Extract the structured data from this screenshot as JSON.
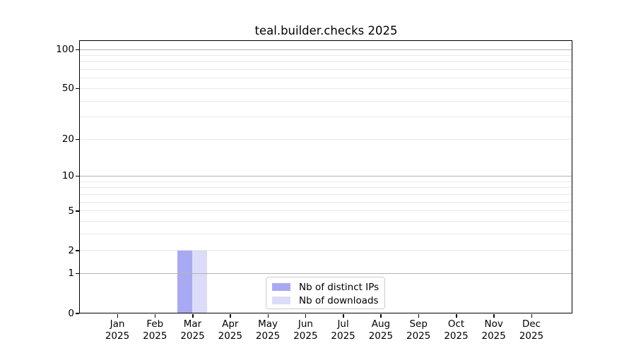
{
  "title": "teal.builder.checks 2025",
  "chart_data": {
    "type": "bar",
    "title": "teal.builder.checks 2025",
    "categories": [
      "Jan",
      "Feb",
      "Mar",
      "Apr",
      "May",
      "Jun",
      "Jul",
      "Aug",
      "Sep",
      "Oct",
      "Nov",
      "Dec"
    ],
    "year": "2025",
    "series": [
      {
        "name": "Nb of distinct IPs",
        "color": "#a9a9f3",
        "values": [
          0,
          0,
          2,
          0,
          0,
          0,
          0,
          0,
          0,
          0,
          0,
          0
        ]
      },
      {
        "name": "Nb of downloads",
        "color": "#dcdcf8",
        "values": [
          0,
          0,
          2,
          0,
          0,
          0,
          0,
          0,
          0,
          0,
          0,
          0
        ]
      }
    ],
    "y_scale": "log10(1+x)",
    "ylim": [
      0,
      100
    ],
    "y_ticks": [
      100,
      50,
      20,
      10,
      5,
      2,
      1,
      0
    ],
    "y_grid_minor": [
      2,
      3,
      4,
      5,
      6,
      7,
      8,
      9,
      20,
      30,
      40,
      50,
      60,
      70,
      80,
      90
    ],
    "y_grid_major": [
      1,
      10,
      100
    ],
    "grid": true,
    "legend_position": "bottom-center",
    "xlabel": "",
    "ylabel": ""
  },
  "colors": {
    "distinct_ips": "#a9a9f3",
    "downloads": "#dcdcf8",
    "grid_minor": "#e9e9e9",
    "grid_major": "#b3b3b3",
    "axis": "#000000",
    "legend_border": "#cccccc",
    "background": "#ffffff"
  }
}
